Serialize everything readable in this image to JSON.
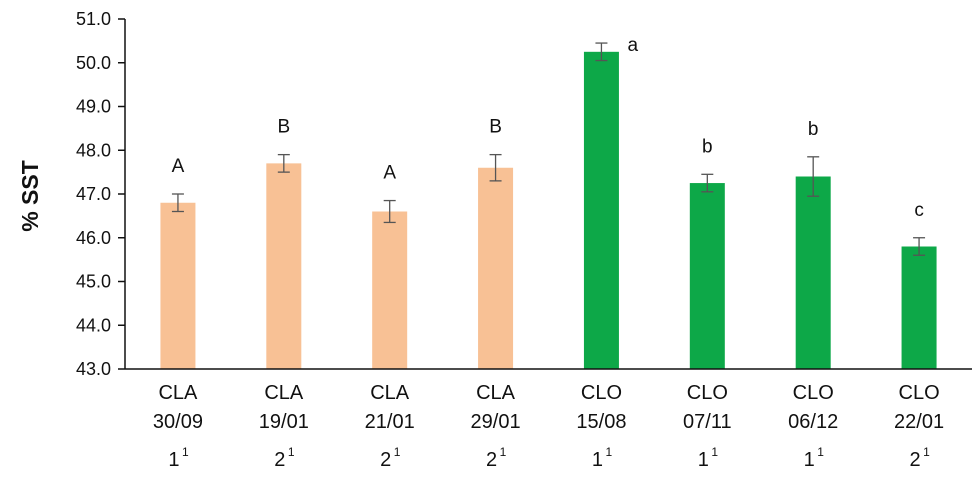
{
  "chart_data": {
    "type": "bar",
    "ylabel": "% SST",
    "ylim": [
      43.0,
      51.0
    ],
    "ytick_labels": [
      "43.0",
      "44.0",
      "45.0",
      "46.0",
      "47.0",
      "48.0",
      "49.0",
      "50.0",
      "51.0"
    ],
    "grid": false,
    "categories": [
      {
        "line1": "CLA",
        "line2": "30/09",
        "num": "1",
        "sup": "1"
      },
      {
        "line1": "CLA",
        "line2": "19/01",
        "num": "2",
        "sup": "1"
      },
      {
        "line1": "CLA",
        "line2": "21/01",
        "num": "2",
        "sup": "1"
      },
      {
        "line1": "CLA",
        "line2": "29/01",
        "num": "2",
        "sup": "1"
      },
      {
        "line1": "CLO",
        "line2": "15/08",
        "num": "1",
        "sup": "1"
      },
      {
        "line1": "CLO",
        "line2": "07/11",
        "num": "1",
        "sup": "1"
      },
      {
        "line1": "CLO",
        "line2": "06/12",
        "num": "1",
        "sup": "1"
      },
      {
        "line1": "CLO",
        "line2": "22/01",
        "num": "2",
        "sup": "1"
      }
    ],
    "values": [
      46.8,
      47.7,
      46.6,
      47.6,
      50.25,
      47.25,
      47.4,
      45.8
    ],
    "error": [
      0.2,
      0.2,
      0.25,
      0.3,
      0.2,
      0.2,
      0.45,
      0.2
    ],
    "significance_labels": [
      "A",
      "B",
      "A",
      "B",
      "a",
      "b",
      "b",
      "c"
    ],
    "colors": [
      "#f8c195",
      "#f8c195",
      "#f8c195",
      "#f8c195",
      "#0da848",
      "#0da848",
      "#0da848",
      "#0da848"
    ],
    "error_bar_color": "#555555",
    "axis_color": "#111111"
  }
}
